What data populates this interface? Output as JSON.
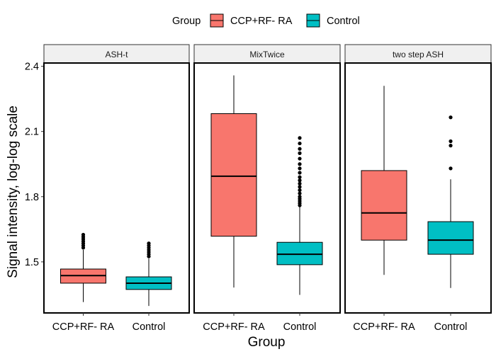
{
  "chart_data": {
    "type": "boxplot",
    "ylabel": "Signal intensity, log-log scale",
    "xlabel": "Group",
    "legend": {
      "title": "Group",
      "position": "top",
      "entries": [
        {
          "label": "CCP+RF- RA",
          "color": "#F8766D"
        },
        {
          "label": "Control",
          "color": "#00BFC4"
        }
      ]
    },
    "ylim": [
      1.265,
      2.415
    ],
    "yticks": [
      1.5,
      1.8,
      2.1,
      2.4
    ],
    "ytick_labels": [
      "1.5",
      "1.8",
      "2.1",
      "2.4"
    ],
    "categories": [
      "CCP+RF- RA",
      "Control"
    ],
    "facets": [
      {
        "title": "ASH-t",
        "boxes": [
          {
            "group": "CCP+RF- RA",
            "whisker_low": 1.315,
            "q1": 1.402,
            "median": 1.437,
            "q3": 1.467,
            "whisker_high": 1.555,
            "outliers": [
              1.565,
              1.575,
              1.585,
              1.595,
              1.605,
              1.615,
              1.625
            ]
          },
          {
            "group": "Control",
            "whisker_low": 1.297,
            "q1": 1.373,
            "median": 1.402,
            "q3": 1.431,
            "whisker_high": 1.515,
            "outliers": [
              1.525,
              1.535,
              1.545,
              1.555,
              1.565,
              1.575,
              1.585
            ]
          }
        ]
      },
      {
        "title": "MixTwice",
        "boxes": [
          {
            "group": "CCP+RF- RA",
            "whisker_low": 1.382,
            "q1": 1.618,
            "median": 1.894,
            "q3": 2.182,
            "whisker_high": 2.358,
            "outliers": []
          },
          {
            "group": "Control",
            "whisker_low": 1.348,
            "q1": 1.487,
            "median": 1.535,
            "q3": 1.59,
            "whisker_high": 1.752,
            "outliers": [
              1.76,
              1.77,
              1.78,
              1.79,
              1.8,
              1.815,
              1.83,
              1.845,
              1.86,
              1.875,
              1.89,
              1.91,
              1.93,
              1.95,
              1.975,
              2.0,
              2.02,
              2.045,
              2.07
            ]
          }
        ]
      },
      {
        "title": "two step ASH",
        "boxes": [
          {
            "group": "CCP+RF- RA",
            "whisker_low": 1.44,
            "q1": 1.6,
            "median": 1.725,
            "q3": 1.92,
            "whisker_high": 2.31,
            "outliers": []
          },
          {
            "group": "Control",
            "whisker_low": 1.38,
            "q1": 1.535,
            "median": 1.6,
            "q3": 1.685,
            "whisker_high": 1.88,
            "outliers": [
              1.93,
              2.035,
              2.055,
              2.165
            ]
          }
        ]
      }
    ]
  }
}
